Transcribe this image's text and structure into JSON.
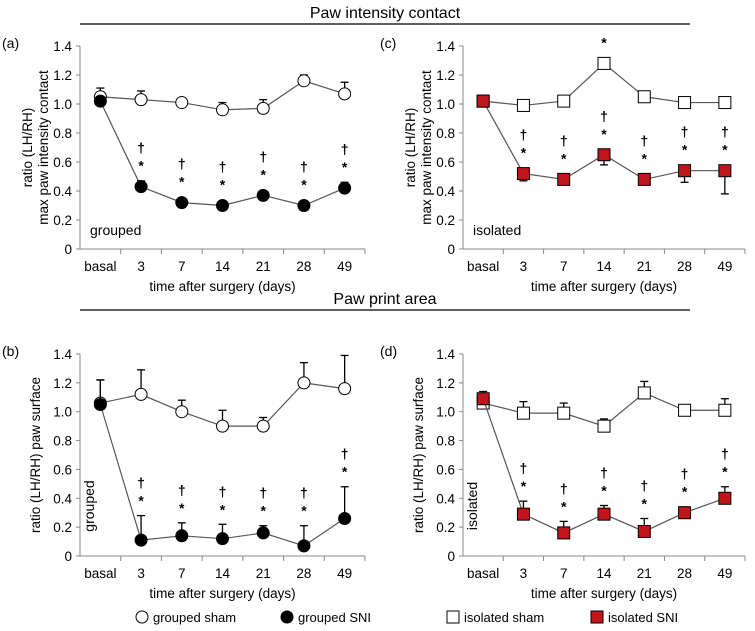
{
  "chart_data": [
    {
      "type": "line",
      "panel": "(a)",
      "section": "Paw intensity contact",
      "ylabel": [
        "ratio (LH/RH)",
        "max paw intensity contact"
      ],
      "xlabel": "time after surgery (days)",
      "group_label": "grouped",
      "ylim": [
        0,
        1.4
      ],
      "yticks": [
        "0",
        "0.2",
        "0.4",
        "0.6",
        "0.8",
        "1.0",
        "1.2",
        "1.4"
      ],
      "categories": [
        "basal",
        "3",
        "7",
        "14",
        "21",
        "28",
        "49"
      ],
      "series": [
        {
          "name": "grouped sham",
          "marker": "circle-open",
          "values": [
            1.05,
            1.03,
            1.01,
            0.96,
            0.97,
            1.16,
            1.07
          ],
          "errors": [
            0.06,
            0.06,
            0.02,
            0.05,
            0.06,
            0.04,
            0.08
          ],
          "err_dir": "up",
          "marks": [
            "",
            "",
            "",
            "",
            "",
            "",
            ""
          ]
        },
        {
          "name": "grouped SNI",
          "marker": "circle-filled",
          "values": [
            1.02,
            0.43,
            0.32,
            0.3,
            0.37,
            0.3,
            0.42
          ],
          "errors": [
            0.02,
            0.04,
            0.01,
            0.01,
            0.02,
            0.01,
            0.04
          ],
          "err_dir": "up",
          "marks": [
            "",
            "†*",
            "†*",
            "†*",
            "†*",
            "†*",
            "†*"
          ]
        }
      ]
    },
    {
      "type": "line",
      "panel": "(c)",
      "section": "Paw intensity contact",
      "ylabel": [
        "ratio (LH/RH)",
        "max paw intensity contact"
      ],
      "xlabel": "time after surgery (days)",
      "group_label": "isolated",
      "ylim": [
        0,
        1.4
      ],
      "yticks": [
        "0",
        "0.2",
        "0.4",
        "0.6",
        "0.8",
        "1.0",
        "1.2",
        "1.4"
      ],
      "categories": [
        "basal",
        "3",
        "7",
        "14",
        "21",
        "28",
        "49"
      ],
      "series": [
        {
          "name": "isolated sham",
          "marker": "square-open",
          "values": [
            1.02,
            0.99,
            1.02,
            1.28,
            1.05,
            1.01,
            1.01
          ],
          "errors": [
            0.01,
            0.01,
            0.01,
            0.03,
            0.02,
            0.01,
            0.01
          ],
          "err_dir": "up",
          "marks": [
            "",
            "",
            "",
            "*",
            "",
            "",
            ""
          ]
        },
        {
          "name": "isolated SNI",
          "marker": "square-red",
          "values": [
            1.02,
            0.52,
            0.48,
            0.65,
            0.48,
            0.54,
            0.54
          ],
          "errors": [
            0.04,
            0.05,
            0.02,
            0.07,
            0.01,
            0.08,
            0.16
          ],
          "err_dir": "down",
          "marks": [
            "",
            "†*",
            "†*",
            "†*",
            "†*",
            "†*",
            "†*"
          ]
        }
      ]
    },
    {
      "type": "line",
      "panel": "(b)",
      "section": "Paw print area",
      "ylabel": [
        "ratio (LH/RH) paw surface"
      ],
      "xlabel": "time after surgery (days)",
      "group_label": "grouped",
      "ylim": [
        0,
        1.4
      ],
      "yticks": [
        "0",
        "0.2",
        "0.4",
        "0.6",
        "0.8",
        "1.0",
        "1.2",
        "1.4"
      ],
      "categories": [
        "basal",
        "3",
        "7",
        "14",
        "21",
        "28",
        "49"
      ],
      "series": [
        {
          "name": "grouped sham",
          "marker": "circle-open",
          "values": [
            1.06,
            1.12,
            1.0,
            0.9,
            0.9,
            1.2,
            1.16
          ],
          "errors": [
            0.16,
            0.17,
            0.08,
            0.11,
            0.06,
            0.14,
            0.23
          ],
          "err_dir": "up",
          "marks": [
            "",
            "",
            "",
            "",
            "",
            "",
            ""
          ]
        },
        {
          "name": "grouped SNI",
          "marker": "circle-filled",
          "values": [
            1.05,
            0.11,
            0.14,
            0.12,
            0.16,
            0.07,
            0.26
          ],
          "errors": [
            0.17,
            0.17,
            0.09,
            0.1,
            0.05,
            0.14,
            0.22
          ],
          "err_dir": "up",
          "marks": [
            "",
            "†*",
            "†*",
            "†*",
            "†*",
            "†*",
            "†*"
          ]
        }
      ]
    },
    {
      "type": "line",
      "panel": "(d)",
      "section": "Paw print area",
      "ylabel": [
        "ratio (LH/RH) paw surface"
      ],
      "xlabel": "time after surgery (days)",
      "group_label": "isolated",
      "ylim": [
        0,
        1.4
      ],
      "yticks": [
        "0",
        "0.2",
        "0.4",
        "0.6",
        "0.8",
        "1.0",
        "1.2",
        "1.4"
      ],
      "categories": [
        "basal",
        "3",
        "7",
        "14",
        "21",
        "28",
        "49"
      ],
      "series": [
        {
          "name": "isolated sham",
          "marker": "square-open",
          "values": [
            1.06,
            0.99,
            0.99,
            0.9,
            1.13,
            1.01,
            1.01
          ],
          "errors": [
            0.04,
            0.08,
            0.07,
            0.05,
            0.08,
            0.03,
            0.08
          ],
          "err_dir": "up",
          "marks": [
            "",
            "",
            "",
            "",
            "",
            "",
            ""
          ]
        },
        {
          "name": "isolated SNI",
          "marker": "square-red",
          "values": [
            1.09,
            0.29,
            0.16,
            0.29,
            0.17,
            0.3,
            0.4
          ],
          "errors": [
            0.05,
            0.09,
            0.08,
            0.06,
            0.09,
            0.04,
            0.08
          ],
          "err_dir": "up",
          "marks": [
            "",
            "†*",
            "†*",
            "†*",
            "†*",
            "†*",
            "†*"
          ]
        }
      ]
    }
  ],
  "sections": [
    "Paw intensity contact",
    "Paw print area"
  ],
  "legend": [
    "grouped sham",
    "grouped SNI",
    "isolated sham",
    "isolated SNI"
  ],
  "colors": {
    "sni_isolated": "#c0161b",
    "sham_line": "#888888",
    "axis": "#888888"
  }
}
